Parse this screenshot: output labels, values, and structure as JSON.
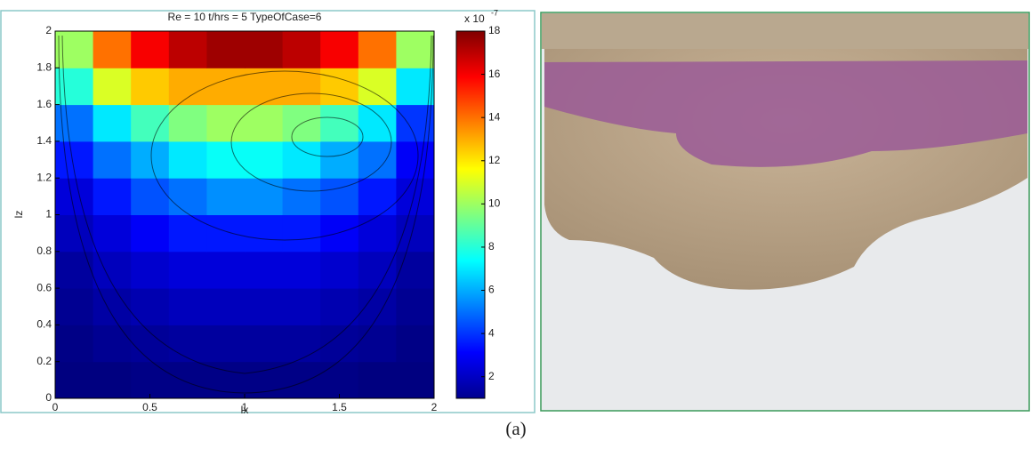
{
  "chart_data": {
    "type": "heatmap",
    "title": "Re = 10 t/hrs = 5 TypeOfCase=6",
    "x_label": "lx",
    "y_label": "lz",
    "x": [
      0.1,
      0.3,
      0.5,
      0.7,
      0.9,
      1.1,
      1.3,
      1.5,
      1.7,
      1.9
    ],
    "y": [
      0.1,
      0.3,
      0.5,
      0.7,
      0.9,
      1.1,
      1.3,
      1.5,
      1.7,
      1.9
    ],
    "z": [
      [
        1,
        1,
        1.1,
        1.1,
        1.1,
        1.1,
        1.1,
        1.1,
        1,
        1
      ],
      [
        1.1,
        1.3,
        1.4,
        1.5,
        1.5,
        1.5,
        1.5,
        1.4,
        1.3,
        1.1
      ],
      [
        1.3,
        1.6,
        1.8,
        2,
        2,
        2,
        2,
        1.8,
        1.6,
        1.3
      ],
      [
        1.5,
        2,
        2.3,
        2.5,
        2.5,
        2.5,
        2.5,
        2.3,
        2,
        1.5
      ],
      [
        2,
        2.5,
        3,
        3.5,
        3.5,
        3.5,
        3.5,
        3,
        2.5,
        2
      ],
      [
        2.5,
        3.5,
        4.5,
        5,
        5.5,
        5.5,
        5,
        4.5,
        3.5,
        2.5
      ],
      [
        3.5,
        5,
        6,
        7,
        7.5,
        7.5,
        7,
        6,
        5,
        3
      ],
      [
        5,
        7,
        8.5,
        9.5,
        10,
        10,
        9.5,
        8.5,
        7,
        4
      ],
      [
        8,
        11,
        12.5,
        13,
        13,
        13,
        13,
        12.5,
        11,
        7
      ],
      [
        10,
        14,
        16,
        17,
        17.5,
        17.5,
        17,
        16,
        14,
        10
      ]
    ],
    "xlim": [
      0,
      2
    ],
    "ylim": [
      0,
      2
    ],
    "xticks": [
      0,
      0.5,
      1,
      1.5,
      2
    ],
    "yticks": [
      0,
      0.2,
      0.4,
      0.6,
      0.8,
      1,
      1.2,
      1.4,
      1.6,
      1.8,
      2
    ],
    "clim": [
      1,
      18
    ],
    "cticks": [
      2,
      4,
      6,
      8,
      10,
      12,
      14,
      16,
      18
    ],
    "colorbar_multiplier": "x 10",
    "colorbar_exponent": "-7",
    "colormap": "jet"
  },
  "caption": "(a)"
}
